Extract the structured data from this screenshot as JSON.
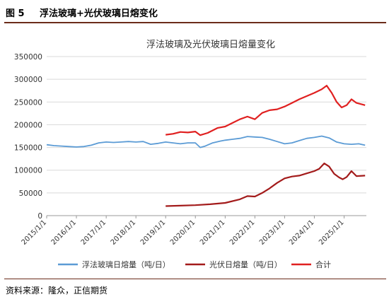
{
  "figure": {
    "number": "图 5",
    "title": "浮法玻璃+光伏玻璃日熔变化",
    "source": "资料来源：隆众，正信期货"
  },
  "chart_data": {
    "type": "line",
    "title": "浮法玻璃及光伏玻璃日熔量变化",
    "ylim": [
      0,
      350000
    ],
    "yticks": [
      "0",
      "50000",
      "100000",
      "150000",
      "200000",
      "250000",
      "300000",
      "350000"
    ],
    "xlim": [
      "2015-01-01",
      "2025-10-01"
    ],
    "xticks": [
      "2015/1/1",
      "2016/1/1",
      "2017/1/1",
      "2018/1/1",
      "2019/1/1",
      "2020/1/1",
      "2021/1/1",
      "2022/1/1",
      "2023/1/1",
      "2024/1/1",
      "2025/1/1"
    ],
    "grid": "horizontal",
    "legend_position": "bottom",
    "series": [
      {
        "name": "浮法玻璃日熔量（吨/日）",
        "color": "#5b9bd5",
        "points": [
          [
            "2015-01-01",
            156000
          ],
          [
            "2015-04-01",
            154000
          ],
          [
            "2015-07-01",
            153000
          ],
          [
            "2015-10-01",
            152000
          ],
          [
            "2016-01-01",
            151000
          ],
          [
            "2016-04-01",
            152000
          ],
          [
            "2016-07-01",
            155000
          ],
          [
            "2016-10-01",
            160000
          ],
          [
            "2017-01-01",
            162000
          ],
          [
            "2017-04-01",
            161000
          ],
          [
            "2017-07-01",
            162000
          ],
          [
            "2017-10-01",
            163000
          ],
          [
            "2018-01-01",
            162000
          ],
          [
            "2018-04-01",
            163000
          ],
          [
            "2018-07-01",
            157000
          ],
          [
            "2018-10-01",
            159000
          ],
          [
            "2019-01-01",
            162000
          ],
          [
            "2019-04-01",
            160000
          ],
          [
            "2019-07-01",
            158000
          ],
          [
            "2019-10-01",
            160000
          ],
          [
            "2020-01-01",
            160000
          ],
          [
            "2020-03-01",
            150000
          ],
          [
            "2020-05-01",
            153000
          ],
          [
            "2020-08-01",
            160000
          ],
          [
            "2020-11-01",
            164000
          ],
          [
            "2021-01-01",
            166000
          ],
          [
            "2021-04-01",
            168000
          ],
          [
            "2021-07-01",
            170000
          ],
          [
            "2021-10-01",
            174000
          ],
          [
            "2022-01-01",
            173000
          ],
          [
            "2022-04-01",
            172000
          ],
          [
            "2022-07-01",
            168000
          ],
          [
            "2022-10-01",
            163000
          ],
          [
            "2023-01-01",
            158000
          ],
          [
            "2023-04-01",
            160000
          ],
          [
            "2023-07-01",
            165000
          ],
          [
            "2023-10-01",
            170000
          ],
          [
            "2024-01-01",
            172000
          ],
          [
            "2024-04-01",
            175000
          ],
          [
            "2024-07-01",
            171000
          ],
          [
            "2024-10-01",
            162000
          ],
          [
            "2025-01-01",
            158000
          ],
          [
            "2025-04-01",
            157000
          ],
          [
            "2025-07-01",
            158000
          ],
          [
            "2025-09-15",
            155000
          ]
        ]
      },
      {
        "name": "光伏日熔量（吨/日）",
        "color": "#a31b1b",
        "points": [
          [
            "2019-01-01",
            21000
          ],
          [
            "2019-07-01",
            22000
          ],
          [
            "2020-01-01",
            23000
          ],
          [
            "2020-07-01",
            25000
          ],
          [
            "2021-01-01",
            28000
          ],
          [
            "2021-07-01",
            36000
          ],
          [
            "2021-10-01",
            43000
          ],
          [
            "2022-01-01",
            42000
          ],
          [
            "2022-04-01",
            50000
          ],
          [
            "2022-07-01",
            60000
          ],
          [
            "2022-10-01",
            72000
          ],
          [
            "2023-01-01",
            82000
          ],
          [
            "2023-04-01",
            86000
          ],
          [
            "2023-07-01",
            88000
          ],
          [
            "2023-10-01",
            93000
          ],
          [
            "2024-01-01",
            98000
          ],
          [
            "2024-03-01",
            103000
          ],
          [
            "2024-05-01",
            115000
          ],
          [
            "2024-07-01",
            108000
          ],
          [
            "2024-09-01",
            92000
          ],
          [
            "2024-11-01",
            84000
          ],
          [
            "2024-12-15",
            80000
          ],
          [
            "2025-02-01",
            85000
          ],
          [
            "2025-04-01",
            98000
          ],
          [
            "2025-06-01",
            87000
          ],
          [
            "2025-09-15",
            88000
          ]
        ]
      },
      {
        "name": "合计",
        "color": "#e02020",
        "points": [
          [
            "2019-01-01",
            178000
          ],
          [
            "2019-04-01",
            180000
          ],
          [
            "2019-07-01",
            184000
          ],
          [
            "2019-10-01",
            183000
          ],
          [
            "2020-01-01",
            185000
          ],
          [
            "2020-03-01",
            177000
          ],
          [
            "2020-06-01",
            182000
          ],
          [
            "2020-10-01",
            193000
          ],
          [
            "2021-01-01",
            196000
          ],
          [
            "2021-04-01",
            204000
          ],
          [
            "2021-07-01",
            212000
          ],
          [
            "2021-10-01",
            218000
          ],
          [
            "2022-01-01",
            212000
          ],
          [
            "2022-04-01",
            226000
          ],
          [
            "2022-07-01",
            232000
          ],
          [
            "2022-10-01",
            234000
          ],
          [
            "2023-01-01",
            240000
          ],
          [
            "2023-04-01",
            248000
          ],
          [
            "2023-07-01",
            256000
          ],
          [
            "2023-10-01",
            263000
          ],
          [
            "2024-01-01",
            270000
          ],
          [
            "2024-04-01",
            278000
          ],
          [
            "2024-06-01",
            286000
          ],
          [
            "2024-08-01",
            270000
          ],
          [
            "2024-10-01",
            250000
          ],
          [
            "2024-12-01",
            238000
          ],
          [
            "2025-02-01",
            243000
          ],
          [
            "2025-04-01",
            256000
          ],
          [
            "2025-06-01",
            248000
          ],
          [
            "2025-09-15",
            243000
          ]
        ]
      }
    ]
  }
}
